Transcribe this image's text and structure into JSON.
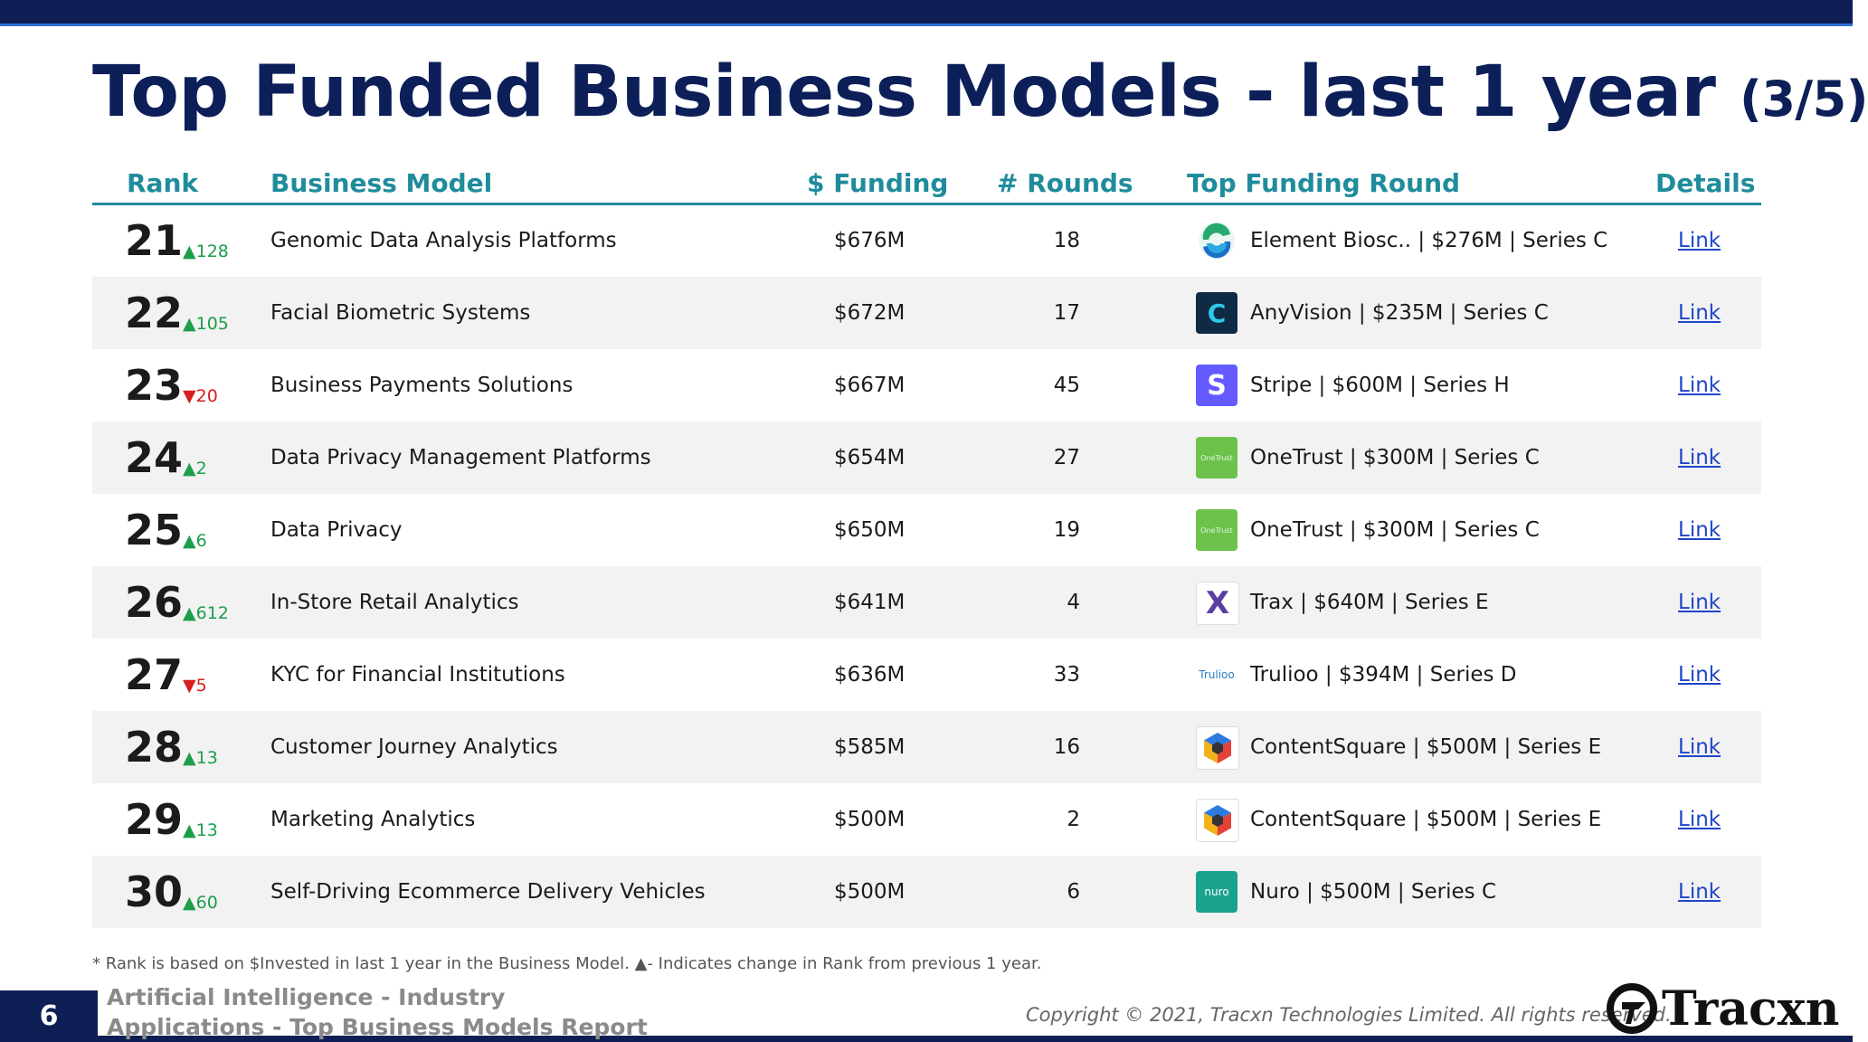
{
  "title": {
    "main": "Top Funded Business Models - last 1 year",
    "page": "(3/5)"
  },
  "columns": {
    "rank": "Rank",
    "business_model": "Business Model",
    "funding": "$ Funding",
    "rounds": "# Rounds",
    "top_round": "Top Funding Round",
    "details": "Details"
  },
  "rows": [
    {
      "rank": "21",
      "change": "▲128",
      "dir": "up",
      "model": "Genomic Data Analysis Platforms",
      "funding": "$676M",
      "rounds": "18",
      "top_round": "Element Biosc.. | $276M | Series C",
      "logo": "element-biosciences-logo",
      "details": "Link"
    },
    {
      "rank": "22",
      "change": "▲105",
      "dir": "up",
      "model": "Facial Biometric Systems",
      "funding": "$672M",
      "rounds": "17",
      "top_round": "AnyVision | $235M | Series C",
      "logo": "anyvision-logo",
      "details": "Link"
    },
    {
      "rank": "23",
      "change": "▼20",
      "dir": "down",
      "model": "Business Payments Solutions",
      "funding": "$667M",
      "rounds": "45",
      "top_round": "Stripe | $600M | Series H",
      "logo": "stripe-logo",
      "details": "Link"
    },
    {
      "rank": "24",
      "change": "▲2",
      "dir": "up",
      "model": "Data Privacy Management Platforms",
      "funding": "$654M",
      "rounds": "27",
      "top_round": "OneTrust | $300M | Series C",
      "logo": "onetrust-logo",
      "details": "Link"
    },
    {
      "rank": "25",
      "change": "▲6",
      "dir": "up",
      "model": "Data Privacy",
      "funding": "$650M",
      "rounds": "19",
      "top_round": "OneTrust | $300M | Series C",
      "logo": "onetrust-logo",
      "details": "Link"
    },
    {
      "rank": "26",
      "change": "▲612",
      "dir": "up",
      "model": "In-Store Retail Analytics",
      "funding": "$641M",
      "rounds": "4",
      "top_round": "Trax | $640M | Series E",
      "logo": "trax-logo",
      "details": "Link"
    },
    {
      "rank": "27",
      "change": "▼5",
      "dir": "down",
      "model": "KYC for Financial Institutions",
      "funding": "$636M",
      "rounds": "33",
      "top_round": "Trulioo | $394M | Series D",
      "logo": "trulioo-logo",
      "details": "Link"
    },
    {
      "rank": "28",
      "change": "▲13",
      "dir": "up",
      "model": "Customer Journey Analytics",
      "funding": "$585M",
      "rounds": "16",
      "top_round": "ContentSquare | $500M | Series E",
      "logo": "contentsquare-logo",
      "details": "Link"
    },
    {
      "rank": "29",
      "change": "▲13",
      "dir": "up",
      "model": "Marketing Analytics",
      "funding": "$500M",
      "rounds": "2",
      "top_round": "ContentSquare | $500M | Series E",
      "logo": "contentsquare-logo",
      "details": "Link"
    },
    {
      "rank": "30",
      "change": "▲60",
      "dir": "up",
      "model": "Self-Driving Ecommerce Delivery Vehicles",
      "funding": "$500M",
      "rounds": "6",
      "top_round": "Nuro | $500M | Series C",
      "logo": "nuro-logo",
      "details": "Link"
    }
  ],
  "logo_text": {
    "anyvision": "C",
    "stripe": "S",
    "onetrust": "OneTrust",
    "trax": "X",
    "trulioo": "Trulioo",
    "nuro": "nuro"
  },
  "footnote": "*  Rank is based on $Invested in last 1 year in the Business Model.  ▲- Indicates change in Rank from previous 1 year.",
  "footer": {
    "page_number": "6",
    "report_title": "Artificial Intelligence - Industry Applications - Top Business Models Report",
    "copyright": "Copyright © 2021, Tracxn Technologies Limited. All rights reserved.",
    "brand": "Tracxn"
  },
  "colors": {
    "navy": "#0d1f54",
    "teal": "#1f8c9c",
    "up": "#1d9e4b",
    "down": "#d61f1f",
    "link": "#1f45c8"
  }
}
